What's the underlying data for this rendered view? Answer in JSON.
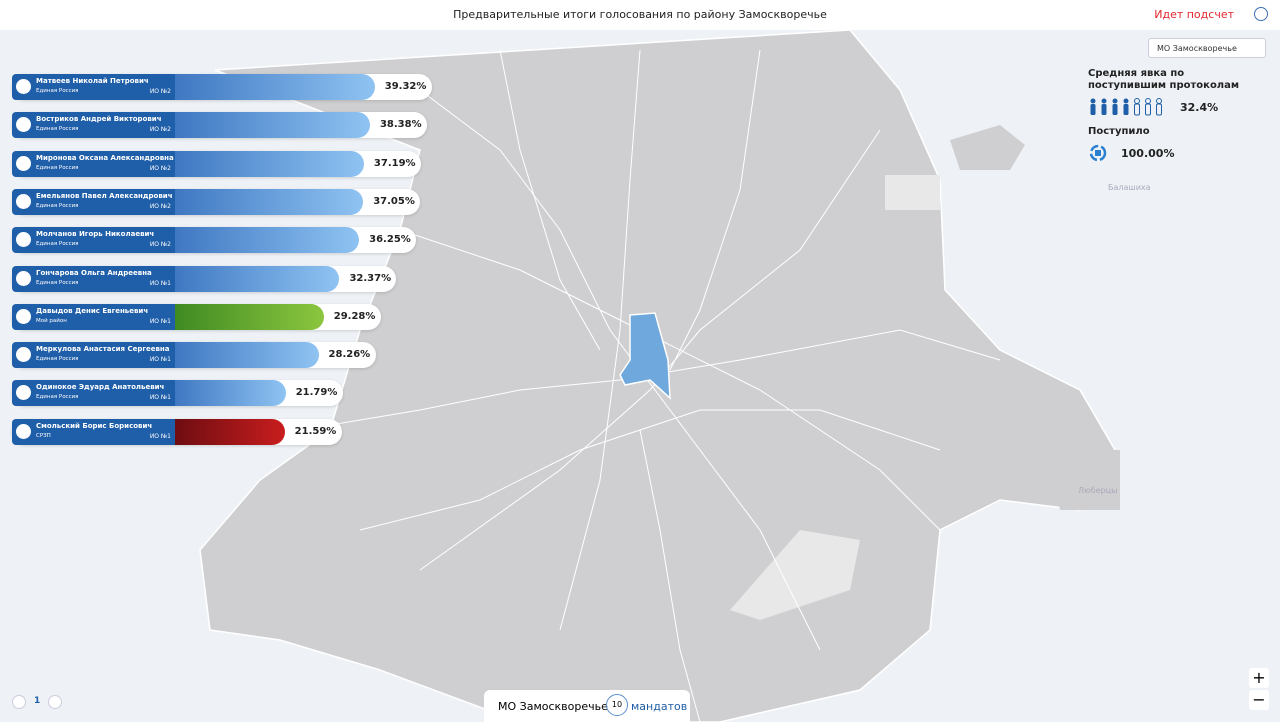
{
  "header": {
    "title": "Предварительные итоги голосования по району Замоскворечье",
    "status": "Идет подсчет"
  },
  "filter": {
    "district": "МО Замоскворечье"
  },
  "turnout": {
    "label": "Средняя явка по поступившим протоколам",
    "value": "32.4%"
  },
  "received": {
    "label": "Поступило",
    "value": "100.00%"
  },
  "candidates": [
    {
      "name": "Матвеев Николай Петрович",
      "party": "Единая Россия",
      "district": "ИО №2",
      "value": 39.32,
      "value_label": "39.32%",
      "colors": [
        "#3f78c2",
        "#8fc3f2"
      ]
    },
    {
      "name": "Востриков Андрей Викторович",
      "party": "Единая Россия",
      "district": "ИО №2",
      "value": 38.38,
      "value_label": "38.38%",
      "colors": [
        "#3f78c2",
        "#8fc3f2"
      ]
    },
    {
      "name": "Миронова Оксана Александровна",
      "party": "Единая Россия",
      "district": "ИО №2",
      "value": 37.19,
      "value_label": "37.19%",
      "colors": [
        "#3f78c2",
        "#8fc3f2"
      ]
    },
    {
      "name": "Емельянов Павел Александрович",
      "party": "Единая Россия",
      "district": "ИО №2",
      "value": 37.05,
      "value_label": "37.05%",
      "colors": [
        "#3f78c2",
        "#8fc3f2"
      ]
    },
    {
      "name": "Молчанов Игорь Николаевич",
      "party": "Единая Россия",
      "district": "ИО №2",
      "value": 36.25,
      "value_label": "36.25%",
      "colors": [
        "#3f78c2",
        "#8fc3f2"
      ]
    },
    {
      "name": "Гончарова Ольга Андреевна",
      "party": "Единая Россия",
      "district": "ИО №1",
      "value": 32.37,
      "value_label": "32.37%",
      "colors": [
        "#3f78c2",
        "#8fc3f2"
      ]
    },
    {
      "name": "Давыдов Денис Евгеньевич",
      "party": "Мой район",
      "district": "ИО №1",
      "value": 29.28,
      "value_label": "29.28%",
      "colors": [
        "#3f8a22",
        "#8cc63f"
      ]
    },
    {
      "name": "Меркулова Анастасия Сергеевна",
      "party": "Единая Россия",
      "district": "ИО №1",
      "value": 28.26,
      "value_label": "28.26%",
      "colors": [
        "#3f78c2",
        "#8fc3f2"
      ]
    },
    {
      "name": "Одинокое Эдуард Анатольевич",
      "party": "Единая Россия",
      "district": "ИО №1",
      "value": 21.79,
      "value_label": "21.79%",
      "colors": [
        "#3f78c2",
        "#8fc3f2"
      ]
    },
    {
      "name": "Смольский Борис Борисович",
      "party": "СРЗП",
      "district": "ИО №1",
      "value": 21.59,
      "value_label": "21.59%",
      "colors": [
        "#6e0d12",
        "#c81d1d"
      ]
    }
  ],
  "map_labels": [
    "Балашиха",
    "Люберцы"
  ],
  "pagination": {
    "page": "1"
  },
  "footer": {
    "district": "МО Замоскворечье",
    "mandates": "10",
    "mandates_label": "мандатов"
  },
  "zoom": {
    "in": "+",
    "out": "−"
  }
}
